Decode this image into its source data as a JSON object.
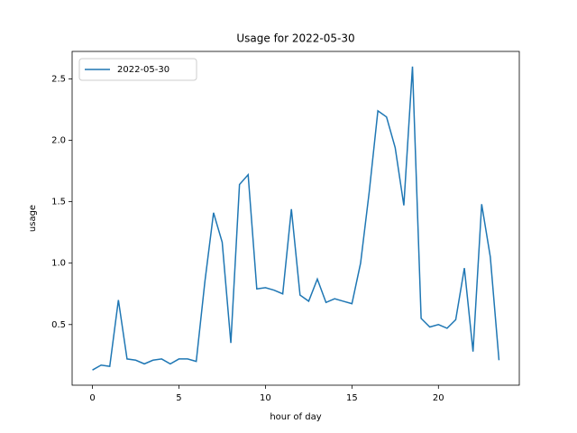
{
  "chart_data": {
    "type": "line",
    "title": "Usage for 2022-05-30",
    "x_label": "hour of day",
    "y_label": "usage",
    "x": [
      0,
      0.5,
      1,
      1.5,
      2,
      2.5,
      3,
      3.5,
      4,
      4.5,
      5,
      5.5,
      6,
      6.5,
      7,
      7.5,
      8,
      8.5,
      9,
      9.5,
      10,
      10.5,
      11,
      11.5,
      12,
      12.5,
      13,
      13.5,
      14,
      14.5,
      15,
      15.5,
      16,
      16.5,
      17,
      17.5,
      18,
      18.5,
      19,
      19.5,
      20,
      20.5,
      21,
      21.5,
      22,
      22.5,
      23,
      23.5
    ],
    "series": [
      {
        "name": "2022-05-30",
        "color": "#1f77b4",
        "values": [
          0.13,
          0.17,
          0.16,
          0.7,
          0.22,
          0.21,
          0.18,
          0.21,
          0.22,
          0.18,
          0.22,
          0.22,
          0.2,
          0.85,
          1.41,
          1.17,
          0.35,
          1.64,
          1.72,
          0.79,
          0.8,
          0.78,
          0.75,
          1.44,
          0.74,
          0.69,
          0.87,
          0.68,
          0.71,
          0.69,
          0.67,
          1.0,
          1.58,
          2.24,
          2.19,
          1.94,
          1.47,
          2.6,
          0.55,
          0.48,
          0.5,
          0.47,
          0.54,
          0.96,
          0.28,
          1.48,
          1.05,
          0.21
        ]
      }
    ],
    "xlim": [
      -1.175,
      24.675
    ],
    "ylim": [
      0.0065,
      2.7235
    ],
    "xticks": [
      0,
      5,
      10,
      15,
      20
    ],
    "yticks": [
      0.5,
      1.0,
      1.5,
      2.0,
      2.5
    ],
    "legend": "upper left",
    "grid": false
  }
}
